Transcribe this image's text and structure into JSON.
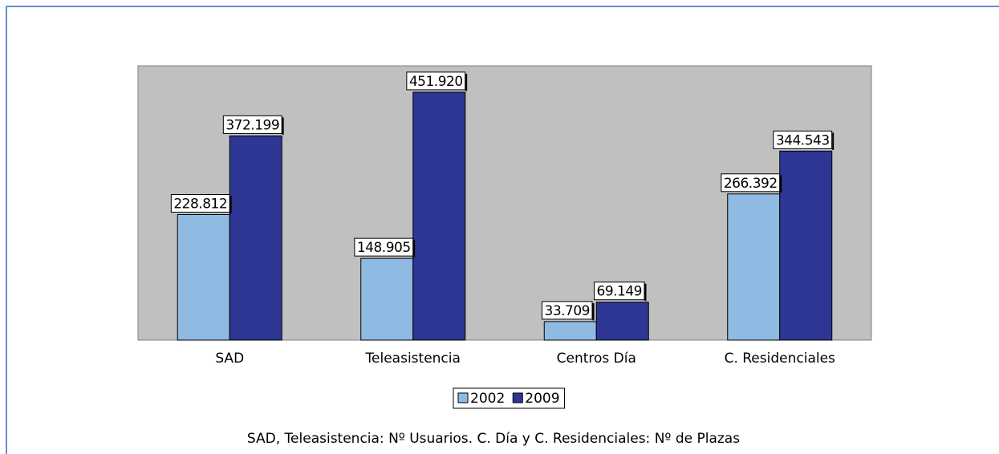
{
  "chart_data": {
    "type": "bar",
    "categories": [
      "SAD",
      "Teleasistencia",
      "Centros Día",
      "C. Residenciales"
    ],
    "series": [
      {
        "name": "2002",
        "color": "#8fbbe3",
        "values": [
          228812,
          148905,
          33709,
          266392
        ],
        "value_labels": [
          "228.812",
          "148.905",
          "33.709",
          "266.392"
        ]
      },
      {
        "name": "2009",
        "color": "#2e3694",
        "values": [
          372199,
          451920,
          69149,
          344543
        ],
        "value_labels": [
          "372.199",
          "451.920",
          "69.149",
          "344.543"
        ]
      }
    ],
    "ylim": [
      0,
      500000
    ],
    "plot_background": "#c0c0c0",
    "note": "SAD, Teleasistencia: Nº Usuarios. C. Día y C. Residenciales: Nº de Plazas"
  }
}
